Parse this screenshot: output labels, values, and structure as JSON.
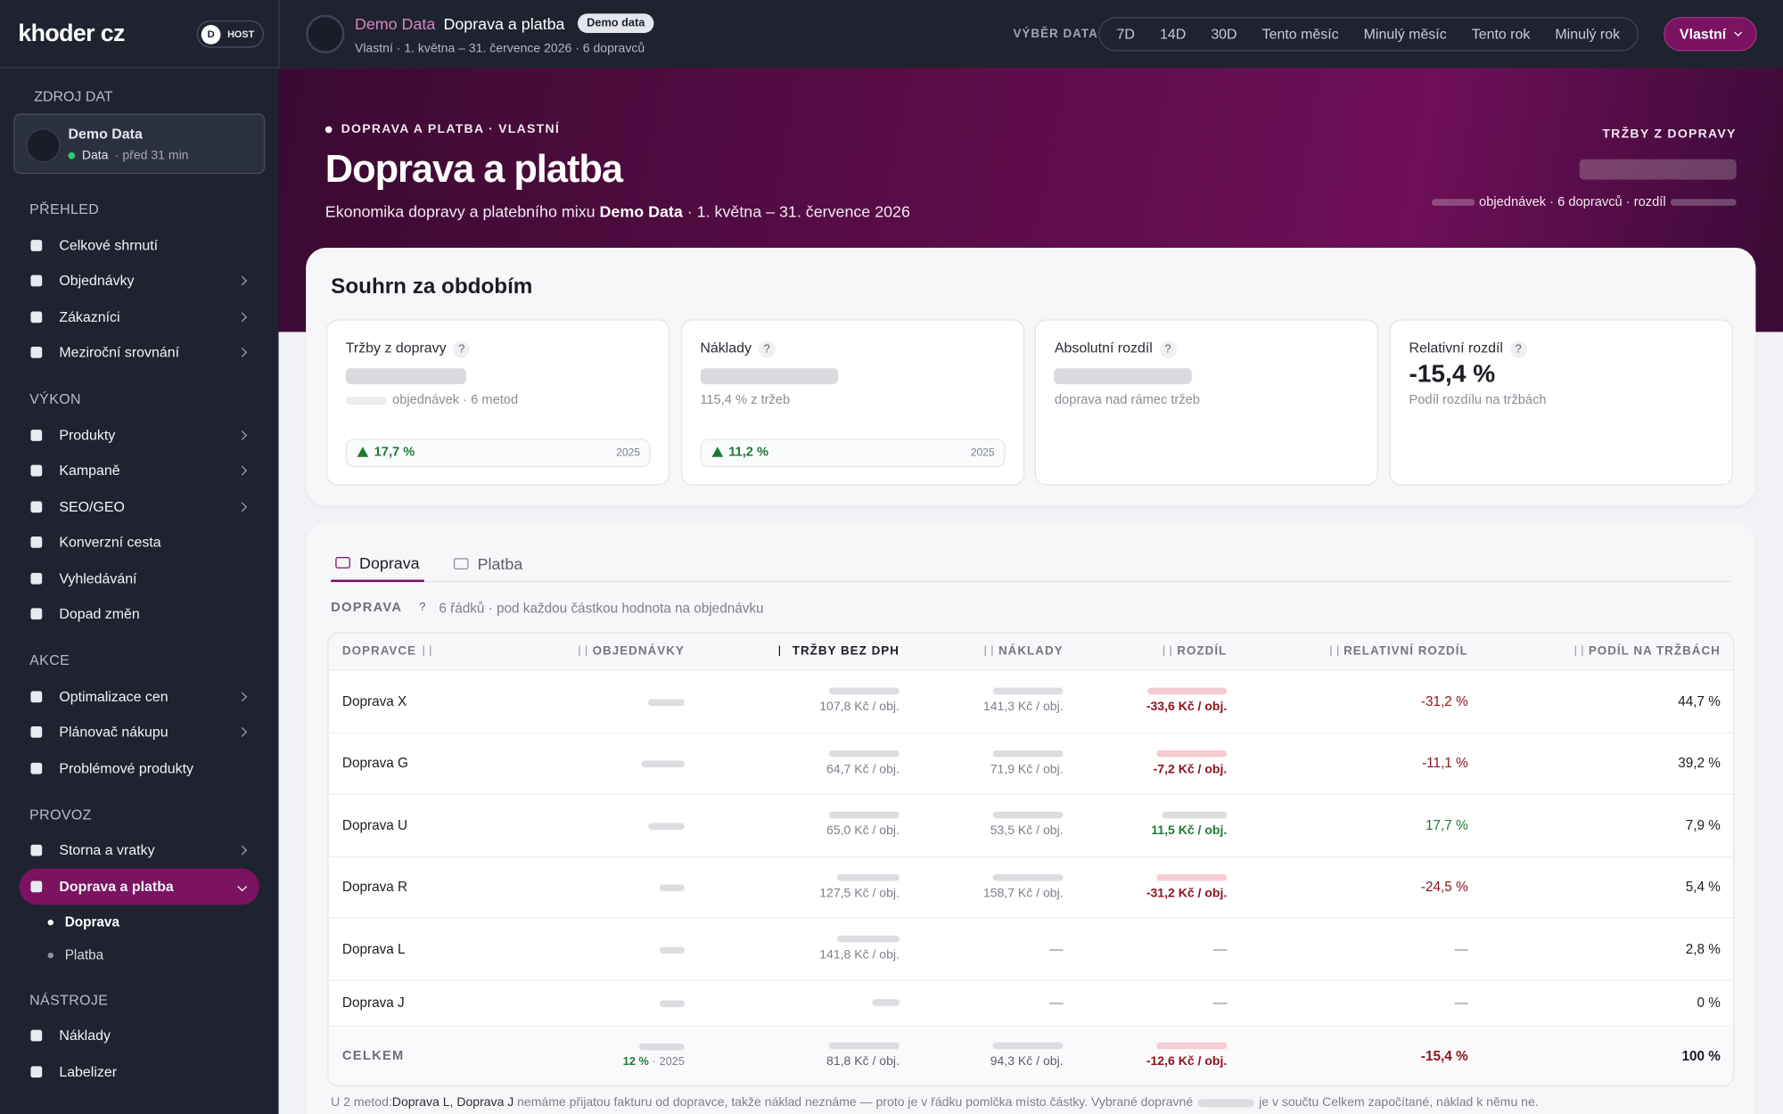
{
  "brand": "khoder cz",
  "user_badge": {
    "initial": "D",
    "label": "HOST"
  },
  "topbar": {
    "source": "Demo Data",
    "page": "Doprava a platba",
    "tag": "Demo data",
    "subtitle": "Vlastní · 1. května – 31. července 2026 · 6 dopravců",
    "range_label": "VÝBĚR DATA",
    "ranges": [
      "7D",
      "14D",
      "30D",
      "Tento měsíc",
      "Minulý měsíc",
      "Tento rok",
      "Minulý rok"
    ],
    "custom": "Vlastní"
  },
  "sidebar": {
    "source_heading": "ZDROJ DAT",
    "source_name": "Demo Data",
    "source_status": "Data",
    "source_age": "· před 31 min",
    "sections": [
      {
        "heading": "PŘEHLED",
        "items": [
          {
            "label": "Celkové shrnutí",
            "expandable": false
          },
          {
            "label": "Objednávky",
            "expandable": true
          },
          {
            "label": "Zákazníci",
            "expandable": true
          },
          {
            "label": "Meziroční srovnání",
            "expandable": true
          }
        ]
      },
      {
        "heading": "VÝKON",
        "items": [
          {
            "label": "Produkty",
            "expandable": true
          },
          {
            "label": "Kampaně",
            "expandable": true
          },
          {
            "label": "SEO/GEO",
            "expandable": true
          },
          {
            "label": "Konverzní cesta",
            "expandable": false
          },
          {
            "label": "Vyhledávání",
            "expandable": false
          },
          {
            "label": "Dopad změn",
            "expandable": false
          }
        ]
      },
      {
        "heading": "AKCE",
        "items": [
          {
            "label": "Optimalizace cen",
            "expandable": true
          },
          {
            "label": "Plánovač nákupu",
            "expandable": true
          },
          {
            "label": "Problémové produkty",
            "expandable": false
          }
        ]
      },
      {
        "heading": "PROVOZ",
        "items": [
          {
            "label": "Storna a vratky",
            "expandable": true
          },
          {
            "label": "Doprava a platba",
            "expandable": true,
            "active": true,
            "children": [
              {
                "label": "Doprava",
                "active": true
              },
              {
                "label": "Platba",
                "active": false
              }
            ]
          }
        ]
      },
      {
        "heading": "NÁSTROJE",
        "items": [
          {
            "label": "Náklady",
            "expandable": false
          },
          {
            "label": "Labelizer",
            "expandable": false
          }
        ]
      }
    ]
  },
  "hero": {
    "eyebrow": "DOPRAVA A PLATBA · VLASTNÍ",
    "title": "Doprava a platba",
    "description": [
      "Ekonomika dopravy a platebního mixu ",
      "Demo Data",
      " · 1. května – 31. července 2026"
    ],
    "kpi_label": "TRŽBY Z DOPRAVY",
    "kpi_sub": "objednávek · 6 dopravců · rozdíl"
  },
  "summary": {
    "title": "Souhrn za obdobím",
    "cards": [
      {
        "label": "Tržby z dopravy",
        "help": "?",
        "value": null,
        "sub": "objednávek · 6 metod",
        "change": "17,7 %",
        "year": "2025"
      },
      {
        "label": "Náklady",
        "help": "?",
        "value": null,
        "sub": "115,4 % z tržeb",
        "change": "11,2 %",
        "year": "2025"
      },
      {
        "label": "Absolutní rozdíl",
        "help": "?",
        "value": null,
        "sub": "doprava nad rámec tržeb",
        "change": null,
        "year": null
      },
      {
        "label": "Relativní rozdíl",
        "help": "?",
        "value": "-15,4 %",
        "sub": "Podíl rozdílu na tržbách",
        "change": null,
        "year": null
      }
    ]
  },
  "tabs": [
    "Doprava",
    "Platba"
  ],
  "table_section": {
    "label": "DOPRAVA",
    "help": "?",
    "note": "6 řádků · pod každou částkou hodnota na objednávku"
  },
  "table": {
    "columns": [
      "DOPRAVCE",
      "OBJEDNÁVKY",
      "TRŽBY BEZ DPH",
      "NÁKLADY",
      "ROZDÍL",
      "RELATIVNÍ ROZDÍL",
      "PODÍL NA TRŽBÁCH"
    ],
    "rows": [
      {
        "name": "Doprava X",
        "revenue": "107,8 Kč / obj.",
        "cost": "141,3 Kč / obj.",
        "diff": "-33,6 Kč / obj.",
        "relative": "-31,2 %",
        "share": "44,7 %",
        "tone": "negative"
      },
      {
        "name": "Doprava G",
        "revenue": "64,7 Kč / obj.",
        "cost": "71,9 Kč / obj.",
        "diff": "-7,2 Kč / obj.",
        "relative": "-11,1 %",
        "share": "39,2 %",
        "tone": "negative"
      },
      {
        "name": "Doprava U",
        "revenue": "65,0 Kč / obj.",
        "cost": "53,5 Kč / obj.",
        "diff": "11,5 Kč / obj.",
        "relative": "17,7 %",
        "share": "7,9 %",
        "tone": "positive"
      },
      {
        "name": "Doprava R",
        "revenue": "127,5 Kč / obj.",
        "cost": "158,7 Kč / obj.",
        "diff": "-31,2 Kč / obj.",
        "relative": "-24,5 %",
        "share": "5,4 %",
        "tone": "negative"
      },
      {
        "name": "Doprava L",
        "revenue": "141,8 Kč / obj.",
        "cost": "—",
        "diff": "—",
        "relative": "—",
        "share": "2,8 %",
        "tone": null
      },
      {
        "name": "Doprava J",
        "revenue": null,
        "cost": "—",
        "diff": "—",
        "relative": "—",
        "share": "0 %",
        "tone": null
      }
    ],
    "total": {
      "name": "CELKEM",
      "orders_change": "12 %",
      "orders_year": "· 2025",
      "revenue": "81,8 Kč / obj.",
      "cost": "94,3 Kč / obj.",
      "diff": "-12,6 Kč / obj.",
      "relative": "-15,4 %",
      "share": "100 %",
      "tone": "negative"
    }
  },
  "footnote": [
    "U 2 metod: ",
    "Doprava L, Doprava J",
    " nemáme přijatou fakturu od dopravce, takže náklad neznáme — proto je v řádku pomlčka místo částky. Vybrané dopravné ",
    " je v součtu Celkem započítané, náklad k němu ne."
  ]
}
